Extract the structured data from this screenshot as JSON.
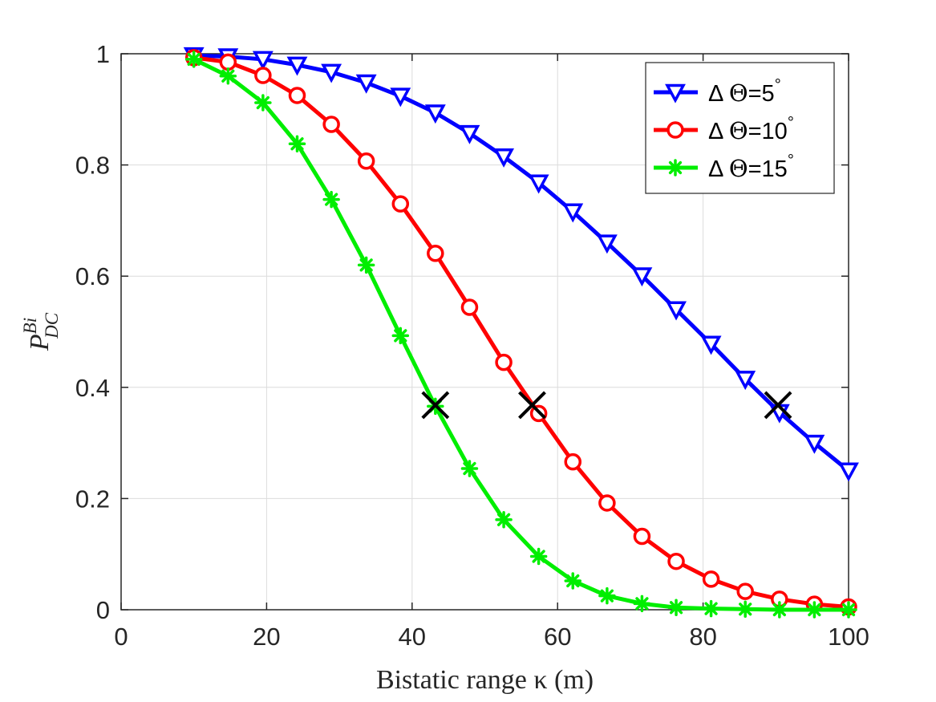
{
  "chart_data": {
    "type": "line",
    "title": "",
    "xlabel": "Bistatic range κ (m)",
    "ylabel": {
      "base": "P",
      "sup": "Bi",
      "sub": "DC"
    },
    "xlim": [
      0,
      100
    ],
    "ylim": [
      0,
      1
    ],
    "xticks": [
      "0",
      "20",
      "40",
      "60",
      "80",
      "100"
    ],
    "yticks": [
      "0",
      "0.2",
      "0.4",
      "0.6",
      "0.8",
      "1"
    ],
    "grid": true,
    "legend_position": "top-right",
    "x": [
      10,
      14.7,
      19.5,
      24.2,
      28.9,
      33.7,
      38.4,
      43.2,
      47.9,
      52.6,
      57.4,
      62.1,
      66.8,
      71.6,
      76.3,
      81.1,
      85.8,
      90.5,
      95.3,
      100
    ],
    "series": [
      {
        "name": "Δ Θ=5°",
        "legend": {
          "prefix": "Δ ",
          "sym": "Θ",
          "mid": "=5",
          "deg": "°"
        },
        "color": "#0000ff",
        "marker": "triangle-down",
        "values": [
          0.997,
          0.995,
          0.99,
          0.98,
          0.967,
          0.948,
          0.924,
          0.894,
          0.857,
          0.815,
          0.768,
          0.716,
          0.66,
          0.601,
          0.54,
          0.478,
          0.415,
          0.355,
          0.3,
          0.25
        ]
      },
      {
        "name": "Δ Θ=10°",
        "legend": {
          "prefix": "Δ ",
          "sym": "Θ",
          "mid": "=10",
          "deg": "°"
        },
        "color": "#ff0000",
        "marker": "circle",
        "values": [
          0.993,
          0.985,
          0.961,
          0.925,
          0.873,
          0.807,
          0.73,
          0.641,
          0.544,
          0.445,
          0.353,
          0.266,
          0.192,
          0.132,
          0.087,
          0.055,
          0.033,
          0.019,
          0.01,
          0.005
        ]
      },
      {
        "name": "Δ Θ=15°",
        "legend": {
          "prefix": "Δ ",
          "sym": "Θ",
          "mid": "=15",
          "deg": "°"
        },
        "color": "#00ee00",
        "marker": "asterisk",
        "values": [
          0.99,
          0.96,
          0.912,
          0.838,
          0.738,
          0.62,
          0.493,
          0.366,
          0.254,
          0.162,
          0.096,
          0.052,
          0.025,
          0.011,
          0.004,
          0.002,
          0.001,
          0.0,
          0.0,
          0.0
        ]
      }
    ],
    "annotations": [
      {
        "x": 43.2,
        "y": 0.368,
        "marker": "x",
        "color": "#000000"
      },
      {
        "x": 56.5,
        "y": 0.368,
        "marker": "x",
        "color": "#000000"
      },
      {
        "x": 90.3,
        "y": 0.368,
        "marker": "x",
        "color": "#000000"
      }
    ]
  }
}
